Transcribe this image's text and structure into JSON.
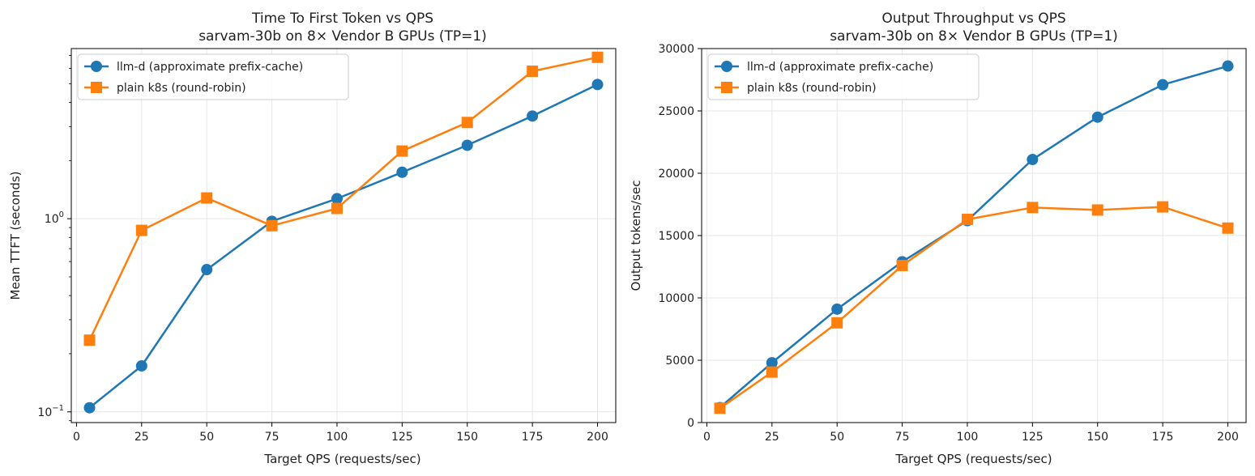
{
  "chart_data": [
    {
      "type": "line",
      "title": "Time To First Token vs QPS",
      "subtitle": "sarvam-30b on 8× Vendor B GPUs (TP=1)",
      "xlabel": "Target QPS (requests/sec)",
      "ylabel": "Mean TTFT (seconds)",
      "yscale": "log",
      "xlim": [
        -2,
        207
      ],
      "ylim": [
        0.088,
        7.6
      ],
      "xticks": [
        0,
        25,
        50,
        75,
        100,
        125,
        150,
        175,
        200
      ],
      "yticks": [
        {
          "value": 0.1,
          "base": "10",
          "exp": "−1"
        },
        {
          "value": 1,
          "base": "10",
          "exp": "0"
        }
      ],
      "grid": true,
      "legend": "top-left",
      "x": [
        5,
        25,
        50,
        75,
        100,
        125,
        150,
        175,
        200
      ],
      "series": [
        {
          "name": "llm-d (approximate prefix-cache)",
          "color": "#1f77b4",
          "marker": "circle",
          "values": [
            0.105,
            0.173,
            0.545,
            0.97,
            1.27,
            1.74,
            2.4,
            3.4,
            4.95
          ]
        },
        {
          "name": "plain k8s (round-robin)",
          "color": "#ff7f0e",
          "marker": "square",
          "values": [
            0.235,
            0.87,
            1.28,
            0.92,
            1.13,
            2.24,
            3.15,
            5.8,
            6.85
          ]
        }
      ]
    },
    {
      "type": "line",
      "title": "Output Throughput vs QPS",
      "subtitle": "sarvam-30b on 8× Vendor B GPUs (TP=1)",
      "xlabel": "Target QPS (requests/sec)",
      "ylabel": "Output tokens/sec",
      "yscale": "linear",
      "xlim": [
        -2,
        207
      ],
      "ylim": [
        0,
        30000
      ],
      "xticks": [
        0,
        25,
        50,
        75,
        100,
        125,
        150,
        175,
        200
      ],
      "yticks": [
        0,
        5000,
        10000,
        15000,
        20000,
        25000,
        30000
      ],
      "grid": true,
      "legend": "top-left",
      "x": [
        5,
        25,
        50,
        75,
        100,
        125,
        150,
        175,
        200
      ],
      "series": [
        {
          "name": "llm-d (approximate prefix-cache)",
          "color": "#1f77b4",
          "marker": "circle",
          "values": [
            1200,
            4800,
            9100,
            12900,
            16200,
            21100,
            24500,
            27100,
            28600
          ]
        },
        {
          "name": "plain k8s (round-robin)",
          "color": "#ff7f0e",
          "marker": "square",
          "values": [
            1150,
            4050,
            8000,
            12600,
            16300,
            17250,
            17050,
            17300,
            15600
          ]
        }
      ]
    }
  ]
}
